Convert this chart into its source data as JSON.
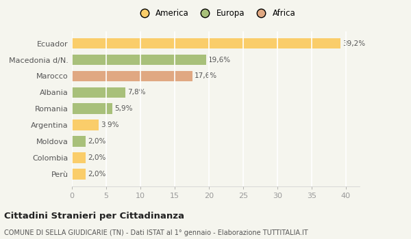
{
  "countries": [
    "Ecuador",
    "Macedonia d/N.",
    "Marocco",
    "Albania",
    "Romania",
    "Argentina",
    "Moldova",
    "Colombia",
    "Perù"
  ],
  "values": [
    39.2,
    19.6,
    17.6,
    7.8,
    5.9,
    3.9,
    2.0,
    2.0,
    2.0
  ],
  "labels": [
    "39,2%",
    "19,6%",
    "17,6%",
    "7,8%",
    "5,9%",
    "3,9%",
    "2,0%",
    "2,0%",
    "2,0%"
  ],
  "colors": [
    "#FACD6A",
    "#A8C07A",
    "#E0A882",
    "#A8C07A",
    "#A8C07A",
    "#FACD6A",
    "#A8C07A",
    "#FACD6A",
    "#FACD6A"
  ],
  "legend": [
    {
      "label": "America",
      "color": "#FACD6A"
    },
    {
      "label": "Europa",
      "color": "#A8C07A"
    },
    {
      "label": "Africa",
      "color": "#E0A882"
    }
  ],
  "xlim": [
    0,
    42
  ],
  "xticks": [
    0,
    5,
    10,
    15,
    20,
    25,
    30,
    35,
    40
  ],
  "title": "Cittadini Stranieri per Cittadinanza",
  "subtitle": "COMUNE DI SELLA GIUDICARIE (TN) - Dati ISTAT al 1° gennaio - Elaborazione TUTTITALIA.IT",
  "background_color": "#F5F5EE",
  "grid_color": "#FFFFFF",
  "bar_height": 0.65,
  "label_fontsize": 7.5,
  "ytick_fontsize": 8.0,
  "xtick_fontsize": 8.0
}
